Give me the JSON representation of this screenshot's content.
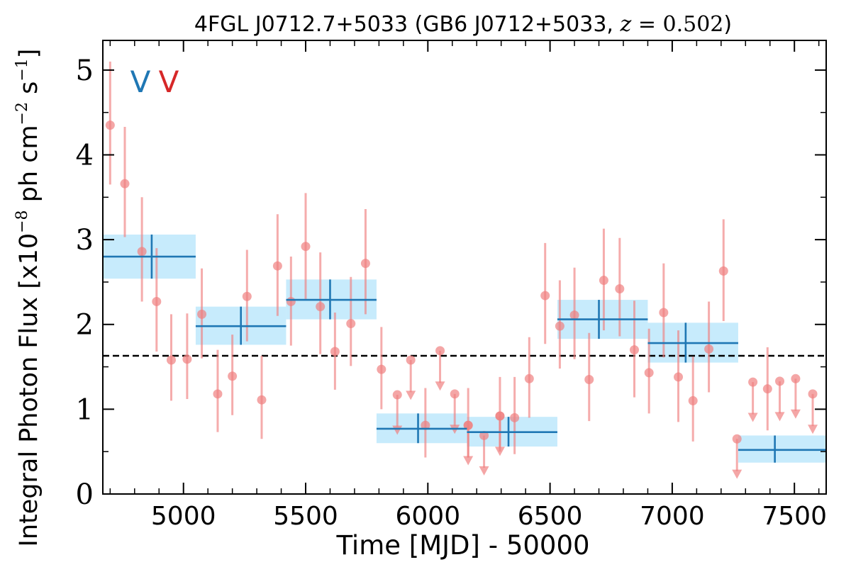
{
  "chart_data": {
    "type": "scatter",
    "title_main": "4FGL J0712.7+5033 (GB6 J0712+5033, ",
    "title_z_label": "z",
    "title_z_eq": " = 0.502",
    "title_close": ")",
    "xlabel": "Time [MJD] - 50000",
    "ylabel_main": "Integral Photon Flux [x10",
    "ylabel_exp": "−8",
    "ylabel_mid": " ph cm",
    "ylabel_exp2": "−2",
    "ylabel_mid2": " s",
    "ylabel_exp3": "−1",
    "ylabel_close": "]",
    "xlim": [
      4670,
      7630
    ],
    "ylim": [
      0,
      5.35
    ],
    "x_ticks": [
      5000,
      5500,
      6000,
      6500,
      7000,
      7500
    ],
    "y_ticks": [
      0,
      1,
      2,
      3,
      4,
      5
    ],
    "mean_flux": 1.63,
    "markers": [
      {
        "label": "V",
        "color": "#1f77b4"
      },
      {
        "label": "V",
        "color": "#d62728"
      }
    ],
    "colors": {
      "points": "#f08080",
      "bins": "#1f77b4",
      "bin_fill": "#bde8fb",
      "mean_line": "#000000"
    },
    "series": [
      {
        "kind": "detections",
        "points": [
          {
            "x": 4700,
            "y": 4.35,
            "lo": 3.65,
            "hi": 5.1
          },
          {
            "x": 4760,
            "y": 3.66,
            "lo": 3.03,
            "hi": 4.33
          },
          {
            "x": 4830,
            "y": 2.86,
            "lo": 2.27,
            "hi": 3.5
          },
          {
            "x": 4890,
            "y": 2.27,
            "lo": 1.68,
            "hi": 2.9
          },
          {
            "x": 4950,
            "y": 1.58,
            "lo": 1.1,
            "hi": 2.12
          },
          {
            "x": 5015,
            "y": 1.59,
            "lo": 1.12,
            "hi": 2.13
          },
          {
            "x": 5075,
            "y": 2.12,
            "lo": 1.6,
            "hi": 2.66
          },
          {
            "x": 5140,
            "y": 1.18,
            "lo": 0.73,
            "hi": 1.7
          },
          {
            "x": 5200,
            "y": 1.39,
            "lo": 0.93,
            "hi": 1.88
          },
          {
            "x": 5260,
            "y": 2.33,
            "lo": 1.8,
            "hi": 2.88
          },
          {
            "x": 5320,
            "y": 1.11,
            "lo": 0.65,
            "hi": 1.63
          },
          {
            "x": 5385,
            "y": 2.69,
            "lo": 2.1,
            "hi": 3.3
          },
          {
            "x": 5440,
            "y": 2.27,
            "lo": 1.75,
            "hi": 2.8
          },
          {
            "x": 5500,
            "y": 2.92,
            "lo": 2.3,
            "hi": 3.55
          },
          {
            "x": 5560,
            "y": 2.21,
            "lo": 1.65,
            "hi": 2.85
          },
          {
            "x": 5620,
            "y": 1.68,
            "lo": 1.23,
            "hi": 2.14
          },
          {
            "x": 5685,
            "y": 2.01,
            "lo": 1.51,
            "hi": 2.56
          },
          {
            "x": 5745,
            "y": 2.72,
            "lo": 2.12,
            "hi": 3.36
          },
          {
            "x": 5810,
            "y": 1.47,
            "lo": 1.0,
            "hi": 1.97
          },
          {
            "x": 5990,
            "y": 0.81,
            "lo": 0.43,
            "hi": 1.25
          },
          {
            "x": 6165,
            "y": 0.81,
            "lo": 0.43,
            "hi": 1.25
          },
          {
            "x": 6295,
            "y": 0.92,
            "lo": 0.5,
            "hi": 1.38
          },
          {
            "x": 6355,
            "y": 0.9,
            "lo": 0.47,
            "hi": 1.38
          },
          {
            "x": 6415,
            "y": 1.36,
            "lo": 0.9,
            "hi": 1.85
          },
          {
            "x": 6480,
            "y": 2.34,
            "lo": 1.77,
            "hi": 2.96
          },
          {
            "x": 6540,
            "y": 1.98,
            "lo": 1.48,
            "hi": 2.52
          },
          {
            "x": 6600,
            "y": 2.11,
            "lo": 1.59,
            "hi": 2.67
          },
          {
            "x": 6660,
            "y": 1.35,
            "lo": 0.86,
            "hi": 1.9
          },
          {
            "x": 6720,
            "y": 2.52,
            "lo": 1.93,
            "hi": 3.13
          },
          {
            "x": 6785,
            "y": 2.42,
            "lo": 1.86,
            "hi": 3.02
          },
          {
            "x": 6845,
            "y": 1.7,
            "lo": 1.14,
            "hi": 2.28
          },
          {
            "x": 6905,
            "y": 1.43,
            "lo": 0.95,
            "hi": 1.95
          },
          {
            "x": 6965,
            "y": 2.14,
            "lo": 1.61,
            "hi": 2.72
          },
          {
            "x": 7025,
            "y": 1.38,
            "lo": 0.85,
            "hi": 1.93
          },
          {
            "x": 7085,
            "y": 1.1,
            "lo": 0.62,
            "hi": 1.62
          },
          {
            "x": 7150,
            "y": 1.71,
            "lo": 1.2,
            "hi": 2.27
          },
          {
            "x": 7210,
            "y": 2.63,
            "lo": 2.04,
            "hi": 3.24
          }
        ]
      },
      {
        "kind": "upper_limits",
        "points": [
          {
            "x": 5875,
            "y": 1.17,
            "y_end": 0.74
          },
          {
            "x": 5930,
            "y": 1.58,
            "y_end": 1.15
          },
          {
            "x": 6050,
            "y": 1.69,
            "y_end": 1.26
          },
          {
            "x": 6110,
            "y": 1.18,
            "y_end": 0.75
          },
          {
            "x": 6165,
            "y": 0.81,
            "y_end": 0.38
          },
          {
            "x": 6230,
            "y": 0.69,
            "y_end": 0.26
          },
          {
            "x": 6295,
            "y": 0.92,
            "y_end": 0.49
          },
          {
            "x": 7265,
            "y": 0.65,
            "y_end": 0.22
          },
          {
            "x": 7330,
            "y": 1.32,
            "y_end": 0.89
          },
          {
            "x": 7440,
            "y": 1.33,
            "y_end": 0.9
          },
          {
            "x": 7505,
            "y": 1.36,
            "y_end": 0.93
          },
          {
            "x": 7575,
            "y": 1.18,
            "y_end": 0.75
          }
        ],
        "plain_points": [
          {
            "x": 7390,
            "y": 1.24,
            "lo": 0.75,
            "hi": 1.73
          }
        ]
      },
      {
        "kind": "binned",
        "bins": [
          {
            "x0": 4670,
            "x1": 5050,
            "xc": 4870,
            "y": 2.8,
            "band_lo": 2.54,
            "band_hi": 3.06,
            "err_lo": 2.54,
            "err_hi": 3.06
          },
          {
            "x0": 5050,
            "x1": 5420,
            "xc": 5235,
            "y": 1.98,
            "band_lo": 1.76,
            "band_hi": 2.21,
            "err_lo": 1.76,
            "err_hi": 2.21
          },
          {
            "x0": 5420,
            "x1": 5790,
            "xc": 5600,
            "y": 2.29,
            "band_lo": 2.06,
            "band_hi": 2.53,
            "err_lo": 2.06,
            "err_hi": 2.53
          },
          {
            "x0": 5790,
            "x1": 6160,
            "xc": 5960,
            "y": 0.77,
            "band_lo": 0.6,
            "band_hi": 0.95,
            "err_lo": 0.6,
            "err_hi": 0.95
          },
          {
            "x0": 6160,
            "x1": 6530,
            "xc": 6330,
            "y": 0.73,
            "band_lo": 0.56,
            "band_hi": 0.91,
            "err_lo": 0.56,
            "err_hi": 0.91
          },
          {
            "x0": 6530,
            "x1": 6900,
            "xc": 6700,
            "y": 2.06,
            "band_lo": 1.83,
            "band_hi": 2.29,
            "err_lo": 1.83,
            "err_hi": 2.29
          },
          {
            "x0": 6900,
            "x1": 7270,
            "xc": 7055,
            "y": 1.78,
            "band_lo": 1.55,
            "band_hi": 2.02,
            "err_lo": 1.55,
            "err_hi": 2.02
          },
          {
            "x0": 7270,
            "x1": 7640,
            "xc": 7420,
            "y": 0.52,
            "band_lo": 0.37,
            "band_hi": 0.69,
            "err_lo": 0.37,
            "err_hi": 0.69
          }
        ]
      }
    ]
  }
}
